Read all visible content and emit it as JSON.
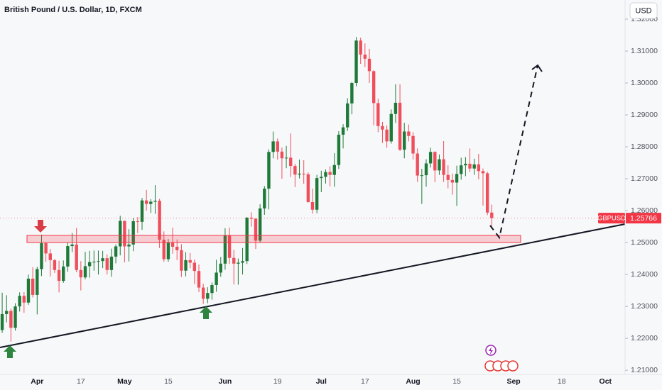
{
  "chart_data": {
    "type": "candlestick",
    "title": "British Pound / U.S. Dollar, 1D, FXCM",
    "currency_button": "USD",
    "up_color": "#1f7a3a",
    "down_color": "#ef4f5c",
    "grid": false,
    "categories": [
      null,
      null,
      null,
      null,
      null,
      null,
      null,
      null,
      "Apr",
      null,
      null,
      null,
      null,
      null,
      null,
      null,
      null,
      null,
      "17",
      null,
      null,
      null,
      null,
      null,
      null,
      null,
      null,
      null,
      "May",
      null,
      null,
      null,
      null,
      null,
      null,
      null,
      null,
      null,
      "15",
      null,
      null,
      null,
      null,
      null,
      null,
      null,
      null,
      null,
      null,
      null,
      null,
      "Jun",
      null,
      null,
      null,
      null,
      null,
      null,
      null,
      null,
      null,
      null,
      null,
      "19",
      null,
      null,
      null,
      null,
      null,
      null,
      null,
      null,
      null,
      "Jul",
      null,
      null,
      null,
      null,
      null,
      null,
      null,
      null,
      null,
      "17",
      null,
      null,
      null,
      null,
      null,
      null,
      null,
      null,
      null,
      null,
      "Aug",
      null,
      null,
      null,
      null,
      null,
      null,
      null,
      null,
      null,
      "15",
      null,
      null,
      null,
      null,
      null,
      null,
      null,
      null,
      null,
      null,
      null,
      null,
      "Sep",
      null,
      null,
      null,
      null,
      null,
      null,
      null,
      null,
      null,
      null,
      "18",
      null,
      null,
      null,
      null,
      null,
      null,
      null,
      null,
      null,
      "Oct",
      null,
      null,
      null,
      null
    ],
    "open": [
      1.2226,
      1.2276,
      1.2286,
      1.2233,
      1.23,
      1.2333,
      1.2312,
      1.2387,
      1.2336,
      1.2417,
      1.2498,
      1.2466,
      1.2445,
      1.2414,
      1.238,
      1.2425,
      1.2489,
      1.2494,
      1.2414,
      1.2391,
      1.2426,
      1.2439,
      1.244,
      1.2442,
      1.2451,
      1.2414,
      1.2456,
      1.2488,
      1.2568,
      1.2488,
      1.2494,
      1.2567,
      1.2565,
      1.2632,
      1.2621,
      1.2628,
      1.2631,
      1.2509,
      1.2448,
      1.2499,
      1.2487,
      1.2476,
      1.2412,
      1.2445,
      1.2437,
      1.2411,
      1.2359,
      1.2324,
      1.2342,
      1.2367,
      1.2406,
      1.2434,
      1.2523,
      1.2452,
      1.2434,
      1.2437,
      1.2442,
      1.2578,
      1.2575,
      1.2506,
      1.2607,
      1.2669,
      1.2784,
      1.2817,
      1.2785,
      1.2764,
      1.2766,
      1.274,
      1.2713,
      1.2716,
      1.2714,
      1.2627,
      1.2603,
      1.2702,
      1.2706,
      1.2721,
      1.2712,
      1.2743,
      1.2838,
      1.2861,
      1.2936,
      1.3,
      1.3133,
      1.3089,
      1.3076,
      1.3037,
      1.2937,
      1.2865,
      1.2854,
      1.2817,
      1.2903,
      1.2938,
      1.2791,
      1.2848,
      1.2834,
      1.2779,
      1.271,
      1.2711,
      1.2748,
      1.2784,
      1.2726,
      1.2761,
      1.2712,
      1.2696,
      1.2688,
      1.2715,
      1.2742,
      1.2747,
      1.2732,
      1.2745,
      1.2724,
      1.2717,
      1.2594,
      null,
      null,
      null,
      null,
      null,
      null,
      null,
      null,
      null,
      null,
      null,
      null,
      null,
      null,
      null,
      null,
      null,
      null,
      null,
      null,
      null,
      null,
      null,
      null,
      null,
      null,
      null,
      null,
      null,
      null
    ],
    "high": [
      1.2343,
      1.2335,
      1.2293,
      1.231,
      1.2344,
      1.2345,
      1.24,
      1.2423,
      1.2424,
      1.2525,
      1.25,
      1.248,
      1.2448,
      1.2443,
      1.2444,
      1.25,
      1.253,
      1.2546,
      1.2442,
      1.2471,
      1.2474,
      1.2475,
      1.2475,
      1.2474,
      1.2463,
      1.2481,
      1.2494,
      1.2584,
      1.2569,
      1.2542,
      1.2577,
      1.258,
      1.264,
      1.2665,
      1.2636,
      1.268,
      1.2637,
      1.2535,
      1.2511,
      1.2547,
      1.251,
      1.2495,
      1.247,
      1.2467,
      1.2447,
      1.2431,
      1.2371,
      1.236,
      1.2375,
      1.2446,
      1.2455,
      1.2545,
      1.2547,
      1.2477,
      1.245,
      1.2483,
      1.258,
      1.2595,
      1.2576,
      1.262,
      1.2677,
      1.2792,
      1.2848,
      1.2826,
      1.2798,
      1.2803,
      1.2842,
      1.2747,
      1.276,
      1.2758,
      1.272,
      1.2669,
      1.2712,
      1.2725,
      1.2729,
      1.2739,
      1.278,
      1.2849,
      1.2871,
      1.2952,
      1.3003,
      1.3144,
      1.3142,
      1.3124,
      1.3107,
      1.304,
      1.2951,
      1.2878,
      1.2867,
      1.2917,
      1.2996,
      1.2996,
      1.2875,
      1.287,
      1.2846,
      1.2795,
      1.2731,
      1.2761,
      1.2797,
      1.2786,
      1.2776,
      1.2818,
      1.2742,
      1.2716,
      1.2741,
      1.2766,
      1.2768,
      1.2795,
      1.2763,
      1.2778,
      1.2732,
      1.2722,
      1.2619,
      null,
      null,
      null,
      null,
      null,
      null,
      null,
      null,
      null,
      null,
      null,
      null,
      null,
      null,
      null,
      null,
      null,
      null,
      null,
      null,
      null,
      null,
      null,
      null,
      null,
      null,
      null,
      null,
      null,
      null
    ],
    "low": [
      1.2217,
      1.225,
      1.219,
      1.2224,
      1.2284,
      1.228,
      1.2305,
      1.2328,
      1.2275,
      1.2395,
      1.244,
      1.2394,
      1.2405,
      1.2344,
      1.2374,
      1.2409,
      1.247,
      1.2407,
      1.235,
      1.2385,
      1.239,
      1.2412,
      1.24,
      1.242,
      1.24,
      1.2393,
      1.2435,
      1.246,
      1.2438,
      1.2441,
      1.2473,
      1.253,
      1.254,
      1.26,
      1.2593,
      1.259,
      1.2483,
      1.244,
      1.244,
      1.2465,
      1.2445,
      1.2392,
      1.2394,
      1.242,
      1.237,
      1.2345,
      1.2308,
      1.231,
      1.2321,
      1.2346,
      1.2393,
      1.2415,
      1.2433,
      1.2369,
      1.2368,
      1.24,
      1.2433,
      1.255,
      1.248,
      1.25,
      1.2587,
      1.2604,
      1.2764,
      1.276,
      1.27,
      1.2733,
      1.2705,
      1.2674,
      1.2701,
      1.2684,
      1.2625,
      1.2591,
      1.2592,
      1.2658,
      1.2685,
      1.2676,
      1.2675,
      1.2731,
      1.2795,
      1.285,
      1.2902,
      1.2989,
      1.306,
      1.305,
      1.3,
      1.2868,
      1.2846,
      1.2812,
      1.2797,
      1.281,
      1.2875,
      1.2787,
      1.2764,
      1.2817,
      1.276,
      1.269,
      1.2621,
      1.2675,
      1.2735,
      1.2689,
      1.2712,
      1.269,
      1.267,
      1.265,
      1.2615,
      1.2697,
      1.2708,
      1.2721,
      1.2712,
      1.2698,
      1.2616,
      1.2586,
      1.2548,
      null,
      null,
      null,
      null,
      null,
      null,
      null,
      null,
      null,
      null,
      null,
      null,
      null,
      null,
      null,
      null,
      null,
      null,
      null,
      null,
      null,
      null,
      null,
      null,
      null,
      null,
      null,
      null,
      null,
      null
    ],
    "close": [
      1.2276,
      1.2286,
      1.2233,
      1.23,
      1.2333,
      1.2312,
      1.2387,
      1.2336,
      1.2417,
      1.2498,
      1.2466,
      1.2445,
      1.2414,
      1.238,
      1.2425,
      1.2489,
      1.2494,
      1.2414,
      1.2391,
      1.2426,
      1.2439,
      1.244,
      1.2442,
      1.2451,
      1.2414,
      1.2456,
      1.2488,
      1.2568,
      1.2488,
      1.2494,
      1.2567,
      1.2565,
      1.2632,
      1.2621,
      1.2628,
      1.2631,
      1.2509,
      1.2448,
      1.2499,
      1.2487,
      1.2476,
      1.2412,
      1.2445,
      1.2437,
      1.2411,
      1.2359,
      1.2324,
      1.2342,
      1.2367,
      1.2406,
      1.2434,
      1.2523,
      1.2452,
      1.2434,
      1.2437,
      1.2442,
      1.2578,
      1.2575,
      1.2506,
      1.2607,
      1.2669,
      1.2784,
      1.2817,
      1.2785,
      1.2764,
      1.2766,
      1.274,
      1.2713,
      1.2716,
      1.2714,
      1.2627,
      1.2603,
      1.2702,
      1.2706,
      1.2721,
      1.2712,
      1.2743,
      1.2838,
      1.2861,
      1.2936,
      1.3,
      1.3133,
      1.3089,
      1.3076,
      1.3037,
      1.2937,
      1.2865,
      1.2854,
      1.2817,
      1.2903,
      1.2938,
      1.2791,
      1.2848,
      1.2834,
      1.2779,
      1.271,
      1.2711,
      1.2748,
      1.2784,
      1.2726,
      1.2761,
      1.2712,
      1.2696,
      1.2688,
      1.2715,
      1.2742,
      1.2747,
      1.2732,
      1.2745,
      1.2724,
      1.2717,
      1.2594,
      1.25766,
      null,
      null,
      null,
      null,
      null,
      null,
      null,
      null,
      null,
      null,
      null,
      null,
      null,
      null,
      null,
      null,
      null,
      null,
      null,
      null,
      null,
      null,
      null,
      null,
      null,
      null,
      null,
      null,
      null,
      null
    ],
    "ylim": [
      1.2087,
      1.326
    ],
    "yticks": [
      {
        "value": 1.21,
        "label": "1.21000"
      },
      {
        "value": 1.22,
        "label": "1.22000"
      },
      {
        "value": 1.23,
        "label": "1.23000"
      },
      {
        "value": 1.24,
        "label": "1.24000"
      },
      {
        "value": 1.25,
        "label": "1.25000"
      },
      {
        "value": 1.26,
        "label": "1.26000"
      },
      {
        "value": 1.27,
        "label": "1.27000"
      },
      {
        "value": 1.28,
        "label": "1.28000"
      },
      {
        "value": 1.29,
        "label": "1.29000"
      },
      {
        "value": 1.3,
        "label": "1.30000"
      },
      {
        "value": 1.31,
        "label": "1.31000"
      },
      {
        "value": 1.32,
        "label": "1.32000"
      }
    ],
    "last_price": {
      "symbol": "GBPUSD",
      "value": 1.25766,
      "color": "#f23645"
    }
  }
}
